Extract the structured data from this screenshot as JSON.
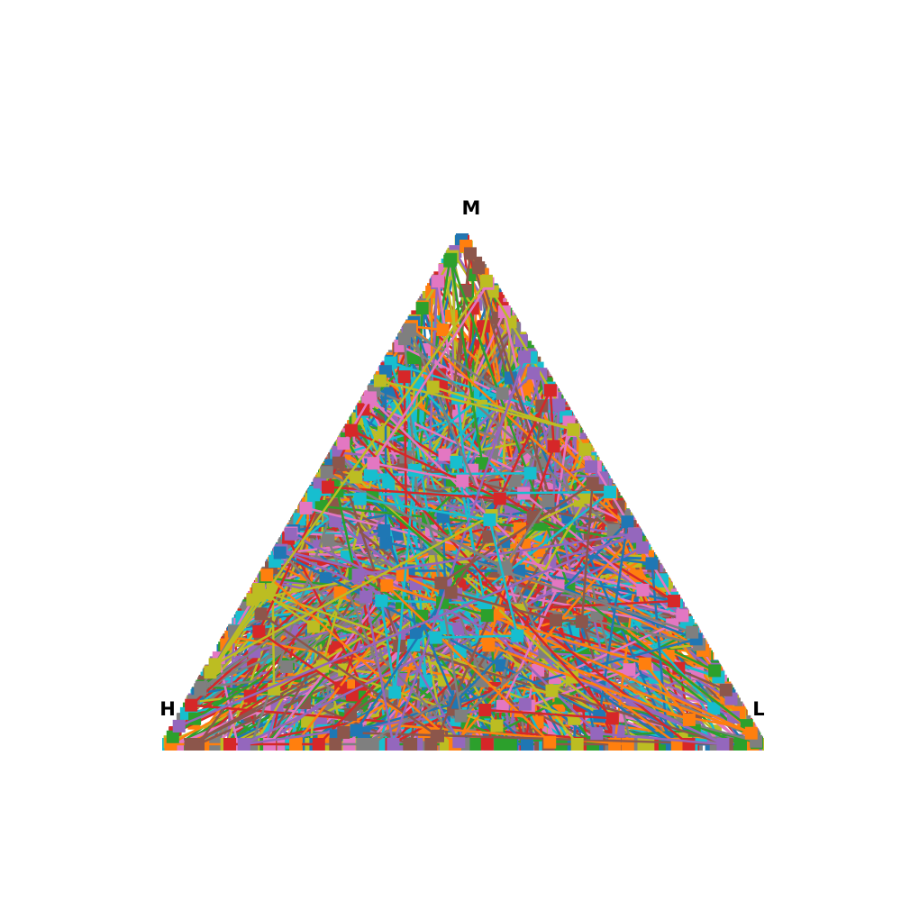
{
  "chart_data": {
    "type": "ternary-line",
    "title": "",
    "vertices": {
      "top": "M",
      "left": "H",
      "right": "L"
    },
    "axis_range": [
      0,
      1
    ],
    "grid": false,
    "legend": "none",
    "marker": "square",
    "palette": [
      "#1f77b4",
      "#ff7f0e",
      "#2ca02c",
      "#d62728",
      "#9467bd",
      "#8c564b",
      "#e377c2",
      "#7f7f7f",
      "#bcbd22",
      "#17becf"
    ],
    "series_count": 800,
    "series": [
      {
        "color_index": 0,
        "points": [
          [
            0.0,
            1.0,
            0.0
          ],
          [
            0.0,
            0.7,
            0.3
          ],
          [
            0.0,
            0.4,
            0.6
          ],
          [
            0.0,
            0.1,
            0.9
          ],
          [
            0.0,
            0.0,
            1.0
          ]
        ]
      },
      {
        "color_index": 9,
        "points": [
          [
            1.0,
            0.0,
            0.0
          ],
          [
            0.8,
            0.2,
            0.0
          ],
          [
            0.55,
            0.45,
            0.0
          ],
          [
            0.3,
            0.7,
            0.0
          ],
          [
            0.05,
            0.95,
            0.0
          ]
        ]
      },
      {
        "color_index": 8,
        "points": [
          [
            0.0,
            0.0,
            1.0
          ],
          [
            0.1,
            0.3,
            0.6
          ],
          [
            0.25,
            0.55,
            0.2
          ],
          [
            0.4,
            0.6,
            0.0
          ]
        ]
      },
      {
        "color_index": 3,
        "points": [
          [
            0.1,
            0.2,
            0.7
          ],
          [
            0.15,
            0.35,
            0.5
          ],
          [
            0.2,
            0.45,
            0.35
          ],
          [
            0.3,
            0.55,
            0.15
          ]
        ]
      },
      {
        "color_index": 6,
        "points": [
          [
            0.85,
            0.1,
            0.05
          ],
          [
            0.6,
            0.3,
            0.1
          ],
          [
            0.4,
            0.5,
            0.1
          ],
          [
            0.2,
            0.75,
            0.05
          ]
        ]
      }
    ]
  }
}
